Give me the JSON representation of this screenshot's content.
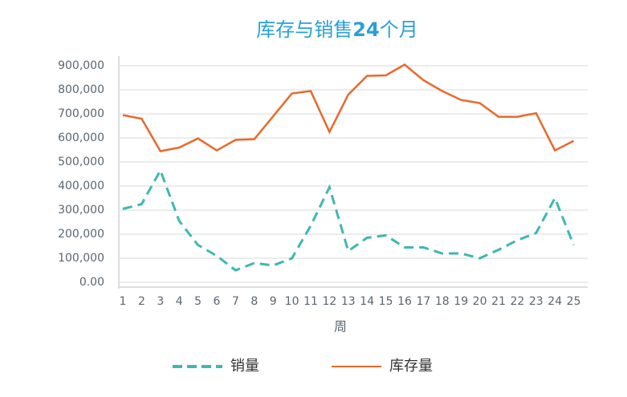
{
  "chart_data": {
    "type": "line",
    "title": "库存与销售24个月",
    "x_label": "周",
    "categories": [
      "1",
      "2",
      "3",
      "4",
      "5",
      "6",
      "7",
      "8",
      "9",
      "10",
      "11",
      "12",
      "13",
      "14",
      "15",
      "16",
      "17",
      "18",
      "19",
      "20",
      "21",
      "22",
      "23",
      "24",
      "25"
    ],
    "series": [
      {
        "name": "销量",
        "color": "#3fb8af",
        "dash": true,
        "values": [
          305000,
          325000,
          465000,
          255000,
          155000,
          110000,
          50000,
          80000,
          70000,
          100000,
          235000,
          395000,
          130000,
          185000,
          195000,
          145000,
          145000,
          120000,
          120000,
          100000,
          135000,
          175000,
          205000,
          350000,
          155000
        ]
      },
      {
        "name": "库存量",
        "color": "#e8692a",
        "dash": false,
        "values": [
          695000,
          680000,
          545000,
          560000,
          598000,
          548000,
          592000,
          595000,
          690000,
          785000,
          795000,
          625000,
          780000,
          858000,
          860000,
          905000,
          840000,
          795000,
          758000,
          745000,
          688000,
          688000,
          703000,
          548000,
          588000
        ]
      }
    ],
    "ylim": [
      0,
      900000
    ],
    "yticks": [
      {
        "value": 0,
        "label": "0.00"
      },
      {
        "value": 100000,
        "label": "100,000"
      },
      {
        "value": 200000,
        "label": "200,000"
      },
      {
        "value": 300000,
        "label": "300,000"
      },
      {
        "value": 400000,
        "label": "400,000"
      },
      {
        "value": 500000,
        "label": "500,000"
      },
      {
        "value": 600000,
        "label": "600,000"
      },
      {
        "value": 700000,
        "label": "700,000"
      },
      {
        "value": 800000,
        "label": "800,000"
      },
      {
        "value": 900000,
        "label": "900,000"
      }
    ],
    "grid": true,
    "legend": "bottom"
  }
}
